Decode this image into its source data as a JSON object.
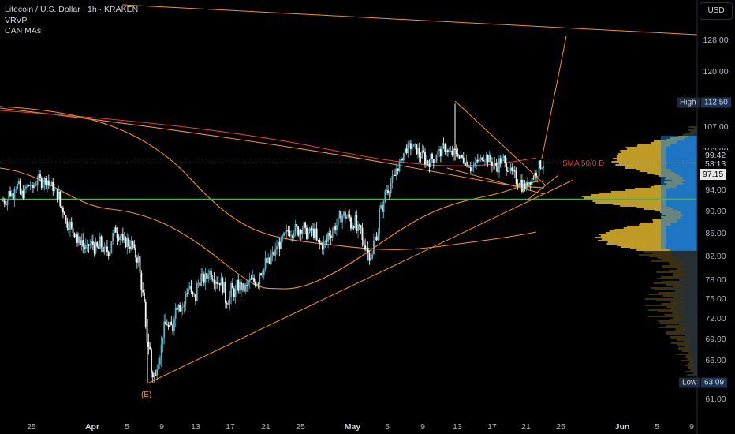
{
  "header": {
    "title": "Litecoin / U.S. Dollar · 1h · KRAKEN",
    "indicator_1": "VRVP",
    "indicator_2": "CAN MAs"
  },
  "currency_button": "USD",
  "colors": {
    "background": "#000000",
    "candle_up": "#5fb3c5",
    "candle_down": "#ffffff",
    "trendline": "#f7931a",
    "sma_red": "#e03c3c",
    "support_green": "#4caf50",
    "vp_blue": "#1f78c8",
    "vp_gold": "#c9a227",
    "vp_outside": "#2b2b26"
  },
  "chart_data": {
    "type": "candlestick",
    "title": "Litecoin / U.S. Dollar · 1h · KRAKEN",
    "y_axis_ticks": [
      "128.00",
      "120.00",
      "107.00",
      "102.00",
      "94.00",
      "90.00",
      "86.00",
      "82.00",
      "78.00",
      "75.00",
      "72.00",
      "69.00",
      "66.00",
      "61.00"
    ],
    "x_axis_ticks": [
      "25",
      "Apr",
      "5",
      "9",
      "13",
      "17",
      "21",
      "25",
      "May",
      "5",
      "9",
      "13",
      "17",
      "21",
      "25",
      "Jun",
      "5",
      "9"
    ],
    "ylim": [
      59.5,
      131
    ],
    "price_line": {
      "label": "97.15",
      "value": 97.15
    },
    "price_tags": [
      "99.42",
      "53:13"
    ],
    "price_tag_value": 99.42,
    "high": {
      "label": "High",
      "value": "112.50"
    },
    "low": {
      "label": "Low",
      "value": "63.09"
    },
    "wave_label": "(E)",
    "sma_label": "SMA 50/0 D",
    "support_level": 92.3,
    "series": [
      {
        "type": "ohlc_path",
        "values": [
          [
            92.0,
            92.2
          ],
          [
            93.5,
            93.0
          ],
          [
            95.0,
            94.8
          ],
          [
            93.2,
            93.6
          ],
          [
            94.5,
            95.3
          ],
          [
            94.0,
            96.0
          ],
          [
            96.5,
            95.2
          ],
          [
            95.8,
            96.2
          ],
          [
            95.0,
            94.5
          ],
          [
            93.8,
            92.8
          ],
          [
            91.0,
            89.8
          ],
          [
            88.0,
            87.5
          ],
          [
            86.5,
            86.2
          ],
          [
            84.5,
            85.0
          ],
          [
            83.8,
            82.8
          ],
          [
            84.0,
            84.2
          ],
          [
            83.5,
            83.2
          ],
          [
            84.5,
            82.2
          ],
          [
            83.0,
            83.1
          ],
          [
            85.0,
            87.4
          ],
          [
            86.0,
            85.8
          ],
          [
            84.0,
            85.1
          ],
          [
            84.2,
            83.8
          ],
          [
            82.5,
            81.1
          ],
          [
            79.0,
            72.0
          ],
          [
            70.0,
            66.5
          ],
          [
            64.5,
            63.5
          ],
          [
            66.0,
            68.5
          ],
          [
            70.0,
            72.0
          ],
          [
            70.5,
            70.8
          ],
          [
            73.0,
            75.5
          ],
          [
            74.0,
            73.8
          ],
          [
            76.0,
            77.5
          ],
          [
            75.5,
            75.0
          ],
          [
            77.0,
            79.2
          ],
          [
            78.0,
            78.6
          ],
          [
            79.5,
            78.8
          ],
          [
            78.5,
            77.5
          ],
          [
            78.0,
            76.2
          ],
          [
            75.0,
            75.3
          ],
          [
            76.5,
            75.8
          ],
          [
            77.0,
            77.1
          ],
          [
            76.5,
            76.8
          ],
          [
            77.5,
            77.9
          ],
          [
            77.8,
            78.1
          ],
          [
            79.5,
            80.0
          ],
          [
            81.0,
            80.8
          ],
          [
            82.0,
            82.9
          ],
          [
            84.0,
            84.3
          ],
          [
            85.0,
            86.1
          ],
          [
            86.5,
            86.4
          ],
          [
            87.0,
            86.3
          ],
          [
            86.8,
            87.4
          ],
          [
            86.0,
            86.0
          ],
          [
            86.5,
            85.8
          ],
          [
            84.5,
            83.8
          ],
          [
            84.0,
            84.7
          ],
          [
            86.0,
            86.3
          ],
          [
            87.0,
            88.2
          ],
          [
            89.0,
            89.5
          ],
          [
            89.2,
            88.7
          ],
          [
            87.5,
            88.6
          ],
          [
            86.5,
            86.7
          ],
          [
            84.5,
            83.6
          ],
          [
            82.5,
            81.9
          ],
          [
            84.5,
            87.3
          ],
          [
            90.0,
            91.5
          ],
          [
            94.0,
            94.6
          ],
          [
            95.5,
            97.3
          ],
          [
            98.5,
            99.6
          ],
          [
            101.0,
            103.0
          ],
          [
            102.5,
            103.2
          ],
          [
            102.5,
            101.8
          ],
          [
            101.0,
            101.3
          ],
          [
            100.0,
            99.6
          ],
          [
            100.5,
            100.1
          ],
          [
            101.5,
            101.8
          ],
          [
            102.5,
            102.7
          ],
          [
            101.5,
            101.3
          ],
          [
            101.5,
            101.9
          ],
          [
            100.5,
            100.3
          ],
          [
            100.0,
            99.1
          ],
          [
            98.5,
            98.8
          ],
          [
            99.8,
            100.1
          ],
          [
            101.0,
            100.6
          ],
          [
            100.5,
            99.2
          ],
          [
            99.0,
            98.6
          ],
          [
            99.8,
            100.4
          ],
          [
            99.0,
            98.6
          ],
          [
            97.5,
            96.6
          ],
          [
            96.0,
            95.8
          ],
          [
            94.8,
            94.6
          ],
          [
            95.6,
            96.7
          ],
          [
            97.0,
            98.0
          ],
          [
            99.0,
            99.4
          ]
        ]
      }
    ],
    "annotations": [
      {
        "type": "trendline",
        "from": [
          "Mar 21",
          129.5
        ],
        "to": [
          "Jun 9",
          128.3
        ]
      },
      {
        "type": "trendline",
        "from": [
          "Apr 8",
          63.5
        ],
        "to": [
          "May 27",
          95.5
        ]
      },
      {
        "type": "trendline",
        "from": [
          "May 13",
          108.2
        ],
        "to": [
          "May 23",
          94.8
        ]
      },
      {
        "type": "trendline",
        "from": [
          "May 23",
          100.4
        ],
        "to": [
          "May 24",
          127.5
        ]
      }
    ],
    "volume_profile": {
      "poc": 92.5,
      "value_area_low": 83.3,
      "value_area_high": 104.5
    }
  }
}
